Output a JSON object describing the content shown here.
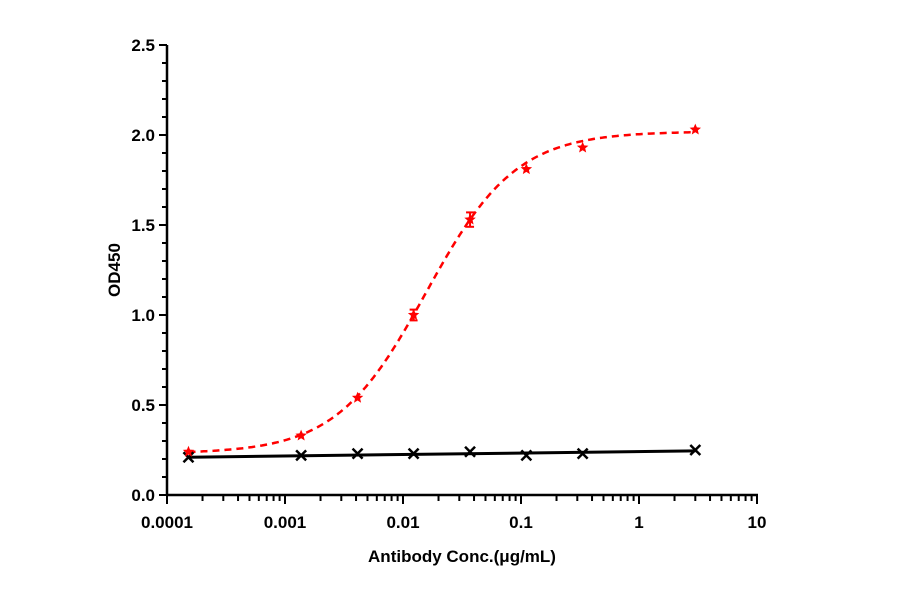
{
  "chart_data": {
    "type": "scatter",
    "title": "",
    "xlabel": "Antibody Conc.(μg/mL)",
    "ylabel": "OD450",
    "xscale": "log",
    "xlim": [
      0.0001,
      10
    ],
    "ylim": [
      0,
      2.5
    ],
    "xticks": [
      "0.0001",
      "0.001",
      "0.01",
      "0.1",
      "1",
      "10"
    ],
    "yticks": [
      "0.0",
      "0.5",
      "1.0",
      "1.5",
      "2.0",
      "2.5"
    ],
    "grid": false,
    "legend": "none",
    "series": [
      {
        "color": "#ff0000",
        "marker": "star",
        "line": "dashed 4PL fit",
        "x": [
          0.000152,
          0.00137,
          0.00412,
          0.0123,
          0.037,
          0.111,
          0.333,
          3
        ],
        "y": [
          0.24,
          0.33,
          0.54,
          1.0,
          1.53,
          1.81,
          1.93,
          2.03
        ],
        "error": [
          0.01,
          0.01,
          0.01,
          0.03,
          0.04,
          0.01,
          0.01,
          0.01
        ]
      },
      {
        "color": "#000000",
        "marker": "x-cross",
        "line": "solid fit",
        "x": [
          0.000152,
          0.00137,
          0.00412,
          0.0123,
          0.037,
          0.111,
          0.333,
          3
        ],
        "y": [
          0.21,
          0.22,
          0.23,
          0.23,
          0.24,
          0.22,
          0.23,
          0.25
        ],
        "error": [
          0.01,
          0.01,
          0.01,
          0.01,
          0.01,
          0.01,
          0.01,
          0.01
        ]
      }
    ]
  }
}
